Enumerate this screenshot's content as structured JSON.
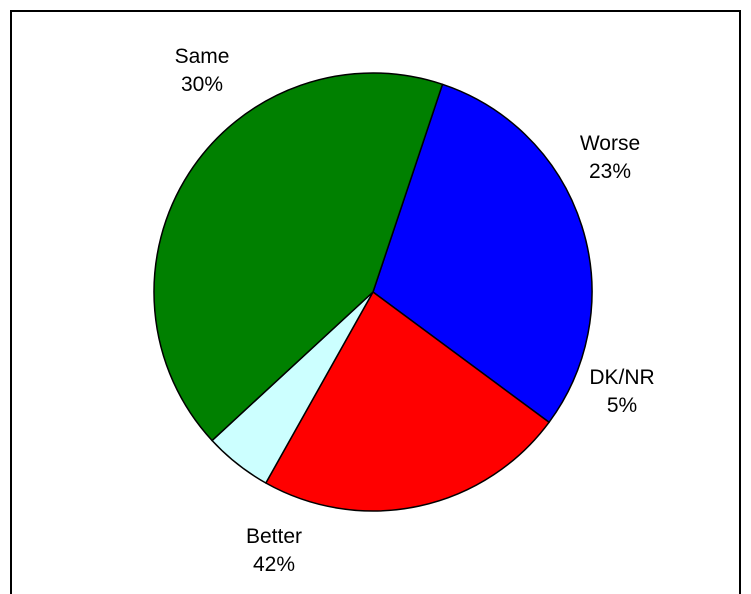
{
  "chart_data": {
    "type": "pie",
    "title": "",
    "slices": [
      {
        "label": "Same",
        "value": 30,
        "value_label": "30%",
        "color": "#0000ff"
      },
      {
        "label": "Worse",
        "value": 23,
        "value_label": "23%",
        "color": "#ff0000"
      },
      {
        "label": "DK/NR",
        "value": 5,
        "value_label": "5%",
        "color": "#ccffff"
      },
      {
        "label": "Better",
        "value": 42,
        "value_label": "42%",
        "color": "#008000"
      }
    ],
    "legend": "none"
  }
}
